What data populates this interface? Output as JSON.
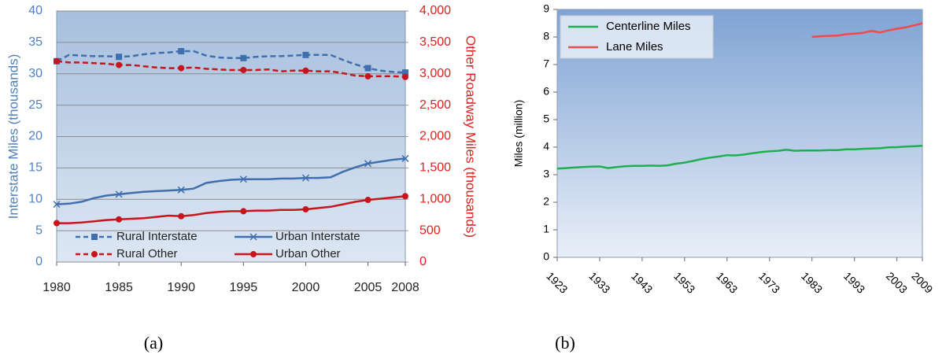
{
  "chart_data": [
    {
      "type": "line",
      "caption": "(a)",
      "ylabel": "Interstate Miles (thousands)",
      "y2label": "Other Roadway Miles (thousands)",
      "x": [
        1980,
        1981,
        1982,
        1983,
        1984,
        1985,
        1986,
        1987,
        1988,
        1989,
        1990,
        1991,
        1992,
        1993,
        1994,
        1995,
        1996,
        1997,
        1998,
        1999,
        2000,
        2001,
        2002,
        2003,
        2004,
        2005,
        2006,
        2007,
        2008
      ],
      "xlim": [
        1980,
        2008
      ],
      "xticks": [
        1980,
        1985,
        1990,
        1995,
        2000,
        2005,
        2008
      ],
      "ylim": [
        0,
        40
      ],
      "yticks": [
        0,
        5,
        10,
        15,
        20,
        25,
        30,
        35,
        40
      ],
      "y2lim": [
        0,
        4000
      ],
      "y2ticks": [
        0,
        500,
        {
          "value": 1000,
          "label": "1,000"
        },
        {
          "value": 1500,
          "label": "1,500"
        },
        {
          "value": 2000,
          "label": "2,000"
        },
        {
          "value": 2500,
          "label": "2,500"
        },
        {
          "value": 3000,
          "label": "3,000"
        },
        {
          "value": 3500,
          "label": "3,500"
        },
        {
          "value": 4000,
          "label": "4,000"
        }
      ],
      "ycolor": "#4f81bd",
      "y2color": "#e02020",
      "grid": true,
      "legend": "bottom",
      "series": [
        {
          "name": "Rural Interstate",
          "color": "#3f6fae",
          "style": "dashed",
          "marker": "square",
          "values": [
            32,
            33,
            32.9,
            32.8,
            32.8,
            32.7,
            32.8,
            33.1,
            33.3,
            33.4,
            33.6,
            33.6,
            32.9,
            32.6,
            32.5,
            32.5,
            32.7,
            32.8,
            32.8,
            32.9,
            33.0,
            33.0,
            33.0,
            32.2,
            31.5,
            30.9,
            30.5,
            30.3,
            30.2
          ]
        },
        {
          "name": "Urban Interstate",
          "color": "#3f6fae",
          "style": "solid",
          "marker": "x",
          "values": [
            9.2,
            9.3,
            9.6,
            10.2,
            10.6,
            10.8,
            11.0,
            11.2,
            11.3,
            11.4,
            11.5,
            11.7,
            12.6,
            12.9,
            13.1,
            13.2,
            13.2,
            13.2,
            13.3,
            13.3,
            13.4,
            13.4,
            13.5,
            14.4,
            15.1,
            15.7,
            16.0,
            16.3,
            16.5
          ]
        },
        {
          "name": "Rural Other",
          "color": "#c8141c",
          "style": "dashed",
          "marker": "circle",
          "axis": "y2",
          "values": [
            3200,
            3180,
            3180,
            3170,
            3160,
            3140,
            3140,
            3120,
            3100,
            3090,
            3090,
            3100,
            3080,
            3070,
            3060,
            3060,
            3060,
            3070,
            3040,
            3050,
            3050,
            3040,
            3040,
            3010,
            2970,
            2960,
            2960,
            2960,
            2950
          ]
        },
        {
          "name": "Urban Other",
          "color": "#c8141c",
          "style": "solid",
          "marker": "circle",
          "axis": "y2",
          "values": [
            620,
            620,
            630,
            650,
            670,
            680,
            690,
            700,
            720,
            740,
            730,
            750,
            780,
            800,
            810,
            810,
            820,
            820,
            830,
            830,
            840,
            860,
            880,
            920,
            960,
            990,
            1010,
            1030,
            1050
          ]
        }
      ]
    },
    {
      "type": "line",
      "caption": "(b)",
      "ylabel": "Miles (million)",
      "x": [
        1923,
        1925,
        1927,
        1929,
        1931,
        1933,
        1935,
        1937,
        1939,
        1941,
        1943,
        1945,
        1947,
        1949,
        1951,
        1953,
        1955,
        1957,
        1959,
        1961,
        1963,
        1965,
        1967,
        1969,
        1971,
        1973,
        1975,
        1977,
        1979,
        1981,
        1983,
        1985,
        1987,
        1989,
        1991,
        1993,
        1995,
        1997,
        1999,
        2001,
        2003,
        2005,
        2007,
        2009
      ],
      "xlim": [
        1923,
        2009
      ],
      "xticks": [
        1923,
        1933,
        1943,
        1953,
        1963,
        1973,
        1983,
        1993,
        2003,
        2009
      ],
      "ylim": [
        0,
        9
      ],
      "yticks": [
        0,
        1,
        2,
        3,
        4,
        5,
        6,
        7,
        8,
        9
      ],
      "grid": false,
      "legend": "top-left",
      "series": [
        {
          "name": "Centerline Miles",
          "color": "#1fae50",
          "style": "solid",
          "values": [
            3.22,
            3.24,
            3.26,
            3.28,
            3.29,
            3.3,
            3.24,
            3.28,
            3.31,
            3.32,
            3.32,
            3.33,
            3.32,
            3.34,
            3.4,
            3.44,
            3.5,
            3.57,
            3.62,
            3.66,
            3.71,
            3.7,
            3.73,
            3.78,
            3.82,
            3.85,
            3.87,
            3.91,
            3.87,
            3.88,
            3.88,
            3.88,
            3.89,
            3.89,
            3.92,
            3.92,
            3.94,
            3.95,
            3.96,
            3.99,
            4.0,
            4.02,
            4.03,
            4.05
          ]
        },
        {
          "name": "Lane Miles",
          "color": "#f04a4a",
          "style": "solid",
          "values": [
            null,
            null,
            null,
            null,
            null,
            null,
            null,
            null,
            null,
            null,
            null,
            null,
            null,
            null,
            null,
            null,
            null,
            null,
            null,
            null,
            null,
            null,
            null,
            null,
            null,
            null,
            null,
            null,
            null,
            null,
            8.0,
            8.03,
            8.04,
            8.05,
            8.1,
            8.12,
            8.15,
            8.22,
            8.16,
            8.24,
            8.3,
            8.35,
            8.42,
            8.5
          ]
        }
      ]
    }
  ]
}
